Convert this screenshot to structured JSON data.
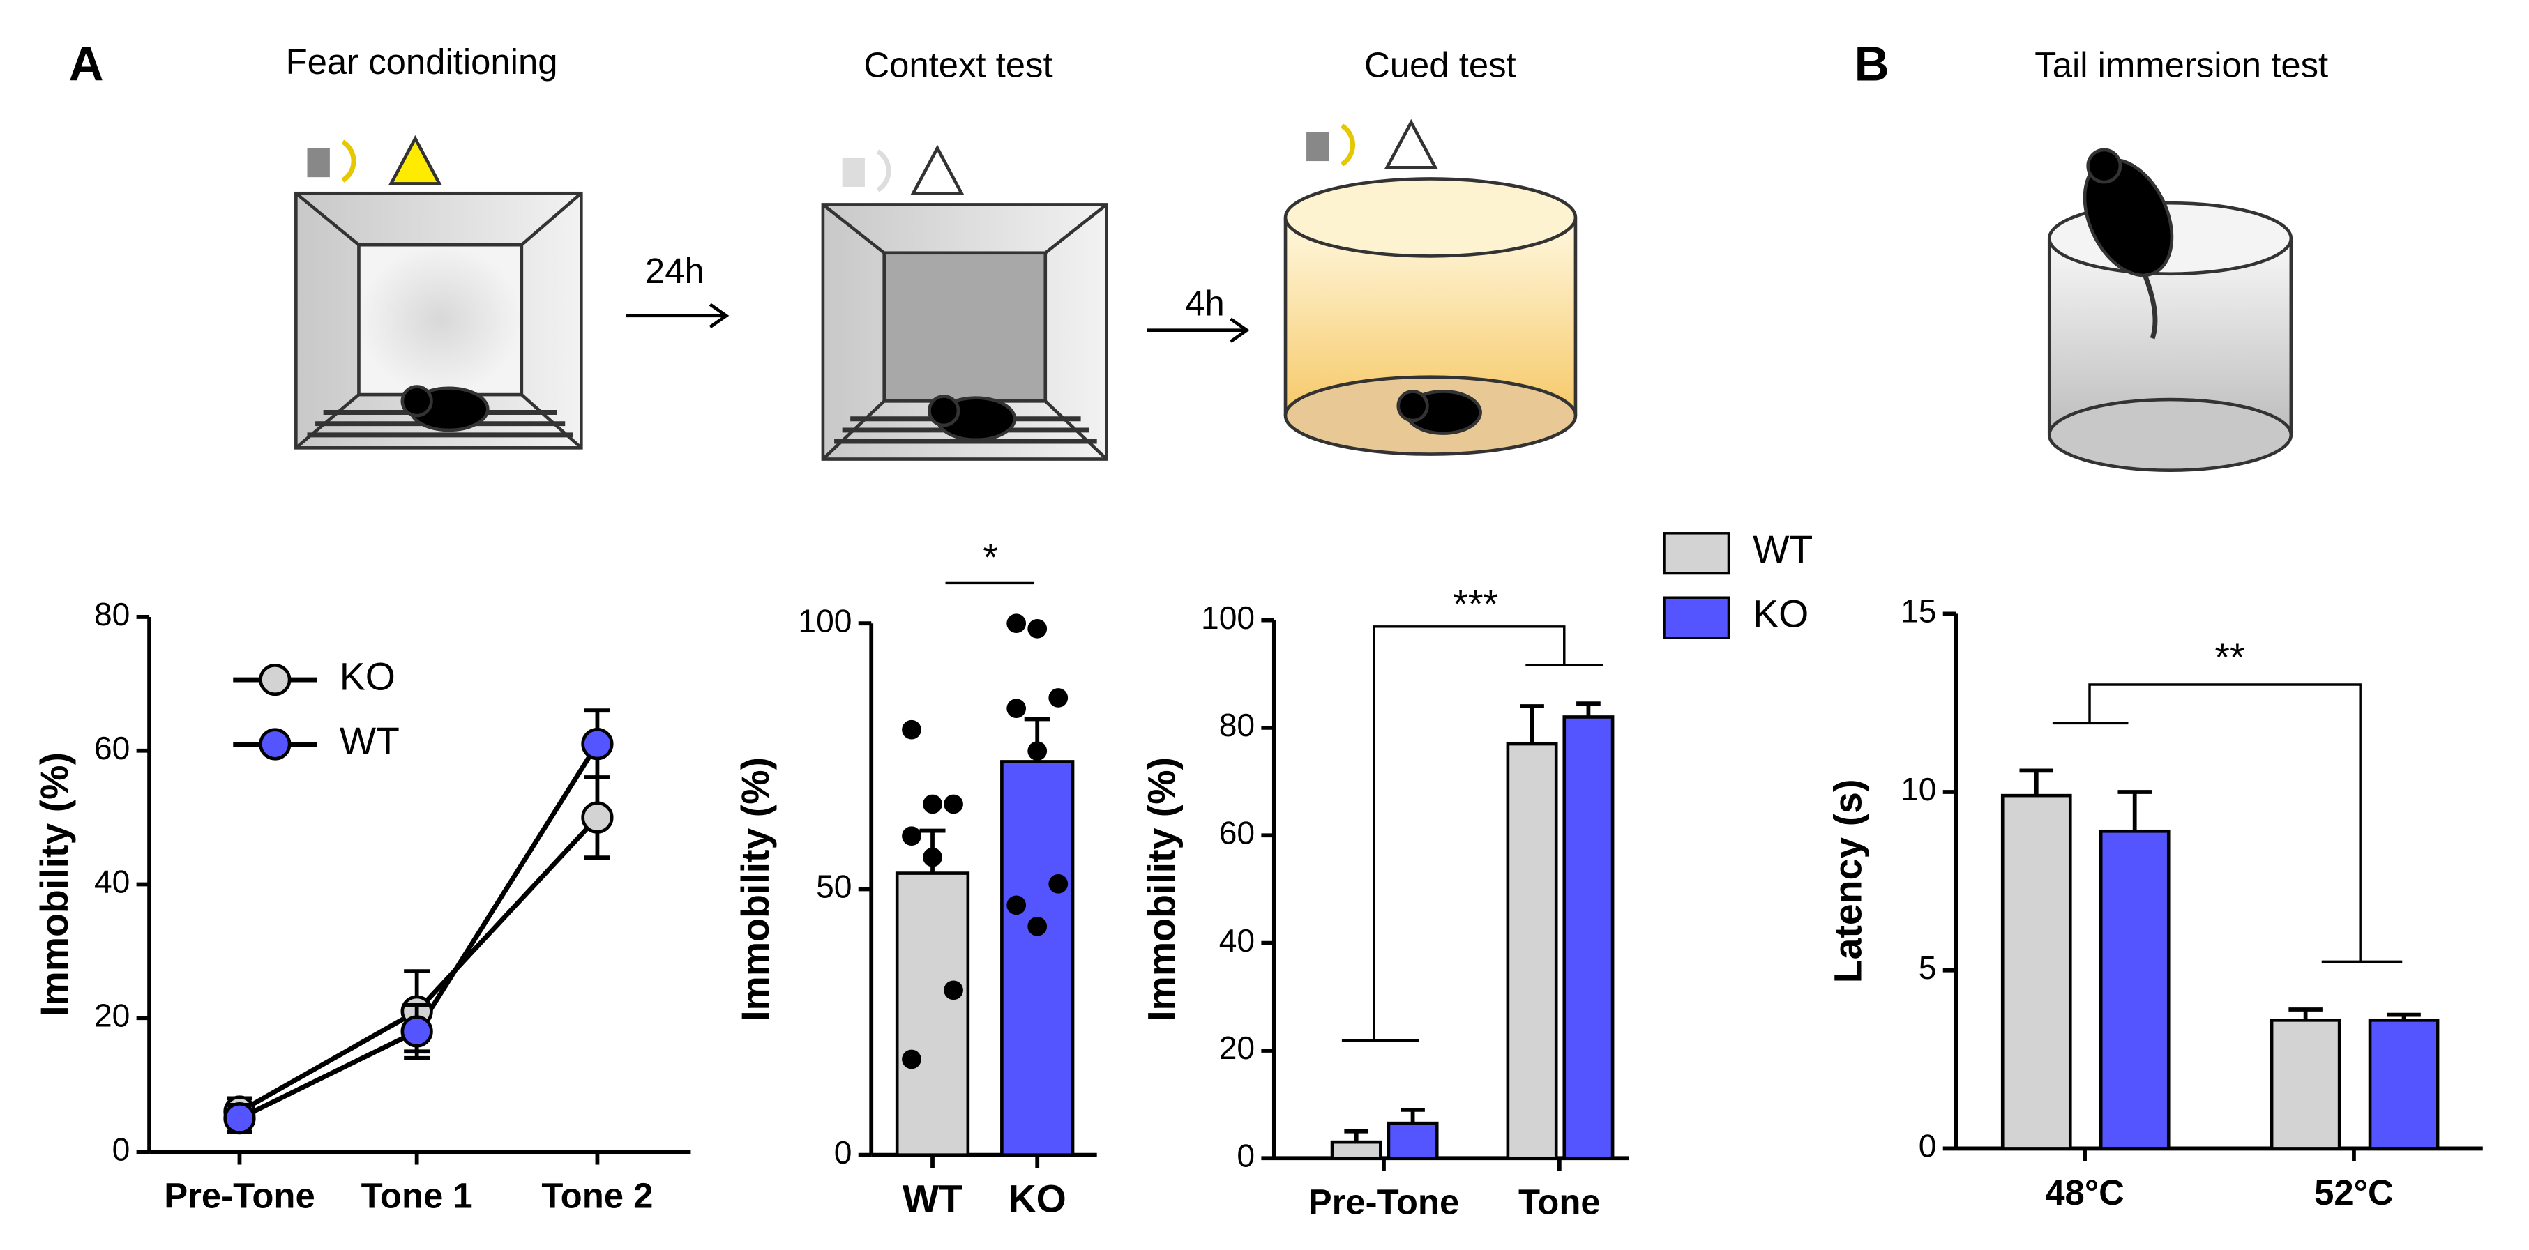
{
  "panels": [
    "A",
    "B"
  ],
  "schematic": {
    "steps": [
      "Fear conditioning",
      "Context test",
      "Cued test",
      "Tail immersion test"
    ],
    "intervals": [
      "24h",
      "4h"
    ]
  },
  "chart_data": [
    {
      "type": "line",
      "y_label": "Immobility (%)",
      "categories": [
        "Pre-Tone",
        "Tone 1",
        "Tone 2"
      ],
      "series": [
        {
          "name": "KO",
          "color": "#d3d3d3",
          "values": [
            6,
            21,
            50
          ],
          "errors": [
            2,
            6,
            6
          ]
        },
        {
          "name": "WT",
          "color": "#5555ff",
          "values": [
            5,
            18,
            61
          ],
          "errors": [
            2,
            4,
            5
          ]
        }
      ],
      "ylim": [
        0,
        80
      ],
      "yticks": [
        0,
        20,
        40,
        60,
        80
      ]
    },
    {
      "type": "bar",
      "y_label": "Immobility (%)",
      "categories": [
        "WT",
        "KO"
      ],
      "values": [
        53,
        74
      ],
      "errors": [
        8,
        8
      ],
      "colors": [
        "#d3d3d3",
        "#5555ff"
      ],
      "points": [
        [
          80,
          66,
          66,
          60,
          56,
          31,
          18
        ],
        [
          100,
          99,
          86,
          84,
          76,
          51,
          47,
          43
        ]
      ],
      "annotation": "*",
      "ylim": [
        0,
        100
      ],
      "yticks": [
        0,
        50,
        100
      ]
    },
    {
      "type": "grouped_bar",
      "y_label": "Immobility (%)",
      "categories": [
        "Pre-Tone",
        "Tone"
      ],
      "series": [
        {
          "name": "WT",
          "color": "#d3d3d3",
          "values": [
            3,
            77
          ],
          "errors": [
            2,
            7
          ]
        },
        {
          "name": "KO",
          "color": "#5555ff",
          "values": [
            6.5,
            82
          ],
          "errors": [
            2.5,
            2.5
          ]
        }
      ],
      "annotation": "***",
      "ylim": [
        0,
        100
      ],
      "yticks": [
        0,
        20,
        40,
        60,
        80,
        100
      ]
    },
    {
      "type": "grouped_bar",
      "y_label": "Latency (s)",
      "categories": [
        "48°C",
        "52°C"
      ],
      "series": [
        {
          "color": "#d3d3d3",
          "values": [
            9.9,
            3.6
          ],
          "errors": [
            0.7,
            0.3
          ]
        },
        {
          "color": "#5555ff",
          "values": [
            8.9,
            3.6
          ],
          "errors": [
            1.1,
            0.15
          ]
        }
      ],
      "annotation": "**",
      "ylim": [
        0,
        15
      ],
      "yticks": [
        0,
        5,
        10,
        15
      ]
    }
  ]
}
